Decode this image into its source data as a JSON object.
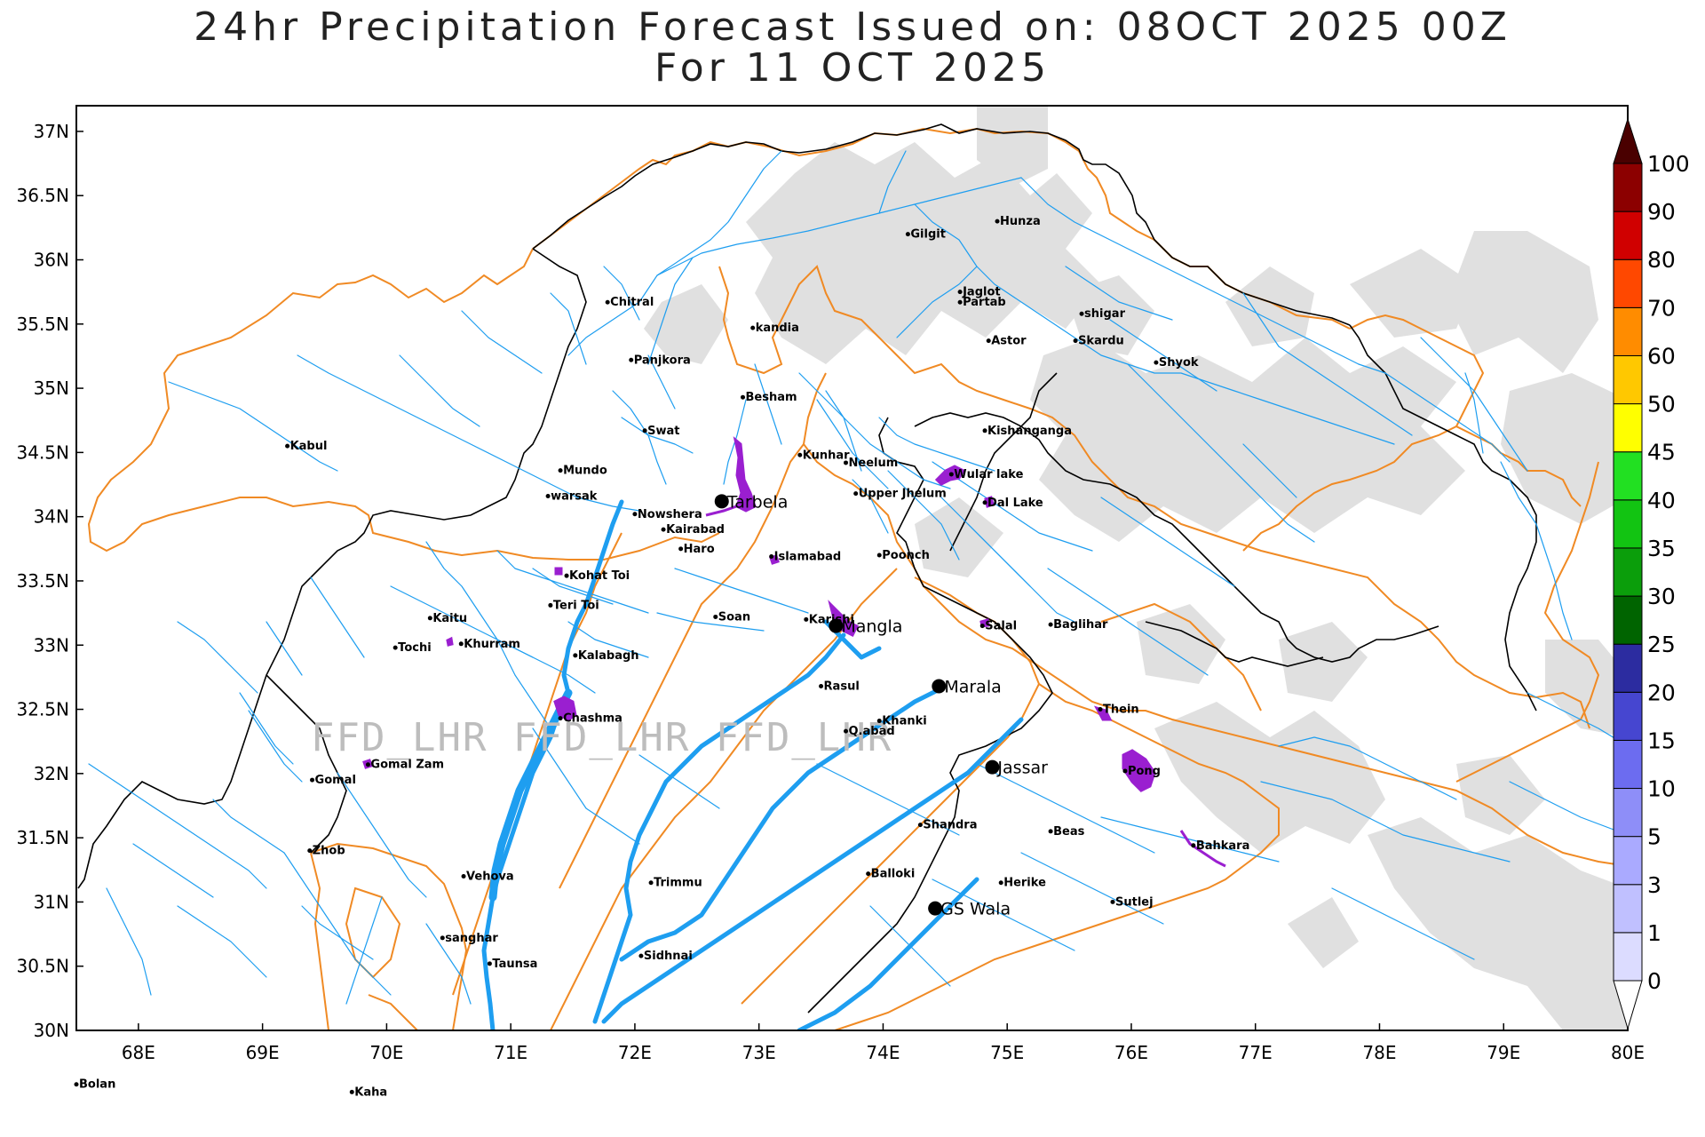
{
  "title": {
    "line1": "24hr Precipitation Forecast Issued on:  08OCT 2025 00Z",
    "line2": "For 11 OCT 2025"
  },
  "watermark": "FFD_LHR FFD_LHR FFD_LHR",
  "map": {
    "lon_range": [
      67.5,
      80.0
    ],
    "lat_range": [
      30.0,
      37.2
    ],
    "lon_ticks": [
      {
        "v": 68,
        "label": "68E"
      },
      {
        "v": 69,
        "label": "69E"
      },
      {
        "v": 70,
        "label": "70E"
      },
      {
        "v": 71,
        "label": "71E"
      },
      {
        "v": 72,
        "label": "72E"
      },
      {
        "v": 73,
        "label": "73E"
      },
      {
        "v": 74,
        "label": "74E"
      },
      {
        "v": 75,
        "label": "75E"
      },
      {
        "v": 76,
        "label": "76E"
      },
      {
        "v": 77,
        "label": "77E"
      },
      {
        "v": 78,
        "label": "78E"
      },
      {
        "v": 79,
        "label": "79E"
      },
      {
        "v": 80,
        "label": "80E"
      }
    ],
    "lat_ticks": [
      {
        "v": 30,
        "label": "30N"
      },
      {
        "v": 30.5,
        "label": "30.5N"
      },
      {
        "v": 31,
        "label": "31N"
      },
      {
        "v": 31.5,
        "label": "31.5N"
      },
      {
        "v": 32,
        "label": "32N"
      },
      {
        "v": 32.5,
        "label": "32.5N"
      },
      {
        "v": 33,
        "label": "33N"
      },
      {
        "v": 33.5,
        "label": "33.5N"
      },
      {
        "v": 34,
        "label": "34N"
      },
      {
        "v": 34.5,
        "label": "34.5N"
      },
      {
        "v": 35,
        "label": "35N"
      },
      {
        "v": 35.5,
        "label": "35.5N"
      },
      {
        "v": 36,
        "label": "36N"
      },
      {
        "v": 36.5,
        "label": "36.5N"
      },
      {
        "v": 37,
        "label": "37N"
      }
    ],
    "colors": {
      "river": "#1e9ef0",
      "border": "#000000",
      "basin": "#f08a24",
      "reservoir": "#9a1fd0",
      "precip_0_1": "#e0e0e0"
    },
    "cities": [
      {
        "name": "Chitral",
        "lon": 71.78,
        "lat": 35.67
      },
      {
        "name": "Gilgit",
        "lon": 74.2,
        "lat": 36.2
      },
      {
        "name": "Hunza",
        "lon": 74.92,
        "lat": 36.3
      },
      {
        "name": "Jaglot",
        "lon": 74.62,
        "lat": 35.75
      },
      {
        "name": "Partab",
        "lon": 74.62,
        "lat": 35.67
      },
      {
        "name": "shigar",
        "lon": 75.6,
        "lat": 35.58
      },
      {
        "name": "Skardu",
        "lon": 75.55,
        "lat": 35.37
      },
      {
        "name": "Astor",
        "lon": 74.85,
        "lat": 35.37
      },
      {
        "name": "Shyok",
        "lon": 76.2,
        "lat": 35.2
      },
      {
        "name": "kandia",
        "lon": 72.95,
        "lat": 35.47
      },
      {
        "name": "Panjkora",
        "lon": 71.97,
        "lat": 35.22
      },
      {
        "name": "Besham",
        "lon": 72.87,
        "lat": 34.93
      },
      {
        "name": "Kabul",
        "lon": 69.2,
        "lat": 34.55
      },
      {
        "name": "Swat",
        "lon": 72.08,
        "lat": 34.67
      },
      {
        "name": "Kishanganga",
        "lon": 74.82,
        "lat": 34.67
      },
      {
        "name": "Kunhar",
        "lon": 73.33,
        "lat": 34.48
      },
      {
        "name": "Neelum",
        "lon": 73.7,
        "lat": 34.42
      },
      {
        "name": "Mundo",
        "lon": 71.4,
        "lat": 34.36
      },
      {
        "name": "Wular lake",
        "lon": 74.55,
        "lat": 34.33
      },
      {
        "name": "warsak",
        "lon": 71.3,
        "lat": 34.16
      },
      {
        "name": "Upper Jhelum",
        "lon": 73.78,
        "lat": 34.18
      },
      {
        "name": "Dal Lake",
        "lon": 74.82,
        "lat": 34.11
      },
      {
        "name": "Nowshera",
        "lon": 72.0,
        "lat": 34.02
      },
      {
        "name": "Kairabad",
        "lon": 72.23,
        "lat": 33.9
      },
      {
        "name": "Haro",
        "lon": 72.37,
        "lat": 33.75
      },
      {
        "name": "Islamabad",
        "lon": 73.1,
        "lat": 33.69
      },
      {
        "name": "Poonch",
        "lon": 73.97,
        "lat": 33.7
      },
      {
        "name": "Kohat Toi",
        "lon": 71.45,
        "lat": 33.54
      },
      {
        "name": "Teri Toi",
        "lon": 71.32,
        "lat": 33.31
      },
      {
        "name": "Soan",
        "lon": 72.65,
        "lat": 33.22
      },
      {
        "name": "Karishi",
        "lon": 73.38,
        "lat": 33.2
      },
      {
        "name": "Salal",
        "lon": 74.8,
        "lat": 33.15
      },
      {
        "name": "Baglihar",
        "lon": 75.35,
        "lat": 33.16
      },
      {
        "name": "Kaitu",
        "lon": 70.35,
        "lat": 33.21
      },
      {
        "name": "Tochi",
        "lon": 70.07,
        "lat": 32.98
      },
      {
        "name": "Khurram",
        "lon": 70.6,
        "lat": 33.01
      },
      {
        "name": "Kalabagh",
        "lon": 71.52,
        "lat": 32.92
      },
      {
        "name": "Rasul",
        "lon": 73.5,
        "lat": 32.68
      },
      {
        "name": "Thein",
        "lon": 75.75,
        "lat": 32.5
      },
      {
        "name": "Khanki",
        "lon": 73.97,
        "lat": 32.41
      },
      {
        "name": "Q.abad",
        "lon": 73.7,
        "lat": 32.33
      },
      {
        "name": "Chashma",
        "lon": 71.4,
        "lat": 32.43
      },
      {
        "name": "Gomal Zam",
        "lon": 69.85,
        "lat": 32.07
      },
      {
        "name": "Gomal",
        "lon": 69.4,
        "lat": 31.95
      },
      {
        "name": "Pong",
        "lon": 75.95,
        "lat": 32.02
      },
      {
        "name": "Shandra",
        "lon": 74.3,
        "lat": 31.6
      },
      {
        "name": "Beas",
        "lon": 75.35,
        "lat": 31.55
      },
      {
        "name": "Bahkara",
        "lon": 76.5,
        "lat": 31.44
      },
      {
        "name": "Zhob",
        "lon": 69.38,
        "lat": 31.4
      },
      {
        "name": "Vehova",
        "lon": 70.62,
        "lat": 31.2
      },
      {
        "name": "Balloki",
        "lon": 73.88,
        "lat": 31.22
      },
      {
        "name": "Trimmu",
        "lon": 72.13,
        "lat": 31.15
      },
      {
        "name": "Herike",
        "lon": 74.95,
        "lat": 31.15
      },
      {
        "name": "Sutlej",
        "lon": 75.85,
        "lat": 31.0
      },
      {
        "name": "sanghar",
        "lon": 70.45,
        "lat": 30.72
      },
      {
        "name": "Sidhnai",
        "lon": 72.05,
        "lat": 30.58
      },
      {
        "name": "Taunsa",
        "lon": 70.83,
        "lat": 30.52
      },
      {
        "name": "Bolan",
        "lon": 67.5,
        "lat": 29.58
      },
      {
        "name": "Kaha",
        "lon": 69.72,
        "lat": 29.52
      }
    ],
    "stations": [
      {
        "name": "Tarbela",
        "lon": 72.7,
        "lat": 34.12
      },
      {
        "name": "Mangla",
        "lon": 73.62,
        "lat": 33.15
      },
      {
        "name": "Marala",
        "lon": 74.45,
        "lat": 32.68
      },
      {
        "name": "Jassar",
        "lon": 74.88,
        "lat": 32.05
      },
      {
        "name": "GS Wala",
        "lon": 74.42,
        "lat": 30.95
      }
    ]
  },
  "colorbar": {
    "labels": [
      "0",
      "1",
      "3",
      "5",
      "10",
      "15",
      "20",
      "25",
      "30",
      "35",
      "40",
      "45",
      "50",
      "60",
      "70",
      "80",
      "90",
      "100"
    ],
    "colors": [
      "#e6e6e6",
      "#dcdcff",
      "#c0c0ff",
      "#aaaaff",
      "#8e8ef8",
      "#6c6cf0",
      "#4646d0",
      "#2c2ca0",
      "#006400",
      "#0b9e0b",
      "#12c412",
      "#22e022",
      "#ffff00",
      "#ffc800",
      "#ff8c00",
      "#ff4800",
      "#d00000",
      "#8c0000",
      "#4a0000"
    ]
  }
}
